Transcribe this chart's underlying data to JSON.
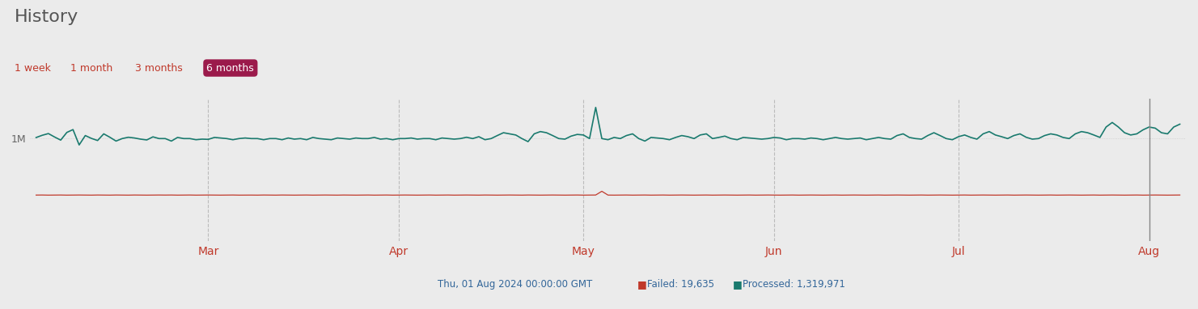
{
  "title": "History",
  "time_buttons": [
    "1 week",
    "1 month",
    "3 months",
    "6 months"
  ],
  "active_button": "6 months",
  "active_button_color": "#9b1a4b",
  "background_color": "#ebebeb",
  "plot_bg_color": "#ebebeb",
  "processed_color": "#1a7a6e",
  "failed_color": "#c0392b",
  "grid_color": "#cccccc",
  "x_tick_labels": [
    "Mar",
    "Apr",
    "May",
    "Jun",
    "Jul",
    "Aug"
  ],
  "y_tick_label": "1M",
  "y_tick_value": 1000000,
  "failed_legend": "Failed: 19,635",
  "processed_legend": "Processed: 1,319,971",
  "tooltip_date": "Thu, 01 Aug 2024 00:00:00 GMT",
  "num_days": 184,
  "processed_data": [
    1020000,
    1060000,
    1090000,
    1030000,
    975000,
    1110000,
    1160000,
    890000,
    1055000,
    1005000,
    968000,
    1085000,
    1025000,
    958000,
    1002000,
    1025000,
    1012000,
    992000,
    978000,
    1032000,
    1002000,
    1002000,
    958000,
    1022000,
    1002000,
    1002000,
    982000,
    992000,
    988000,
    1022000,
    1012000,
    1002000,
    982000,
    1002000,
    1012000,
    1002000,
    1002000,
    982000,
    1002000,
    1002000,
    982000,
    1012000,
    992000,
    1002000,
    982000,
    1022000,
    1002000,
    992000,
    982000,
    1012000,
    1002000,
    992000,
    1012000,
    1002000,
    1002000,
    1022000,
    992000,
    1002000,
    982000,
    1002000,
    1002000,
    1012000,
    992000,
    1002000,
    1002000,
    982000,
    1012000,
    1002000,
    992000,
    1002000,
    1025000,
    1002000,
    1035000,
    982000,
    1002000,
    1055000,
    1105000,
    1085000,
    1065000,
    1002000,
    948000,
    1085000,
    1125000,
    1105000,
    1055000,
    1002000,
    992000,
    1045000,
    1075000,
    1065000,
    1002000,
    1550000,
    1002000,
    982000,
    1022000,
    1002000,
    1055000,
    1085000,
    1002000,
    958000,
    1022000,
    1012000,
    1002000,
    982000,
    1022000,
    1055000,
    1035000,
    1002000,
    1065000,
    1085000,
    1002000,
    1022000,
    1045000,
    1002000,
    982000,
    1022000,
    1012000,
    1002000,
    992000,
    1002000,
    1022000,
    1012000,
    982000,
    1002000,
    1002000,
    992000,
    1012000,
    1002000,
    982000,
    1002000,
    1022000,
    1002000,
    992000,
    1002000,
    1012000,
    982000,
    1002000,
    1022000,
    1002000,
    992000,
    1055000,
    1085000,
    1022000,
    1002000,
    992000,
    1055000,
    1105000,
    1055000,
    1002000,
    982000,
    1035000,
    1065000,
    1022000,
    992000,
    1085000,
    1125000,
    1065000,
    1035000,
    1002000,
    1055000,
    1085000,
    1025000,
    992000,
    1002000,
    1055000,
    1085000,
    1065000,
    1022000,
    1002000,
    1085000,
    1125000,
    1105000,
    1065000,
    1022000,
    1205000,
    1285000,
    1205000,
    1105000,
    1065000,
    1085000,
    1155000,
    1205000,
    1185000,
    1105000,
    1085000,
    1205000,
    1255000
  ],
  "failed_data": [
    8000,
    9000,
    7000,
    8000,
    9000,
    7000,
    8000,
    9000,
    8000,
    7000,
    9000,
    8000,
    7000,
    9000,
    8000,
    7000,
    9000,
    8000,
    7000,
    8000,
    9000,
    8000,
    9000,
    7000,
    8000,
    9000,
    7000,
    8000,
    9000,
    8000,
    7000,
    8000,
    9000,
    7000,
    8000,
    8000,
    7000,
    9000,
    8000,
    7000,
    9000,
    8000,
    7000,
    8000,
    9000,
    7000,
    8000,
    9000,
    8000,
    7000,
    9000,
    8000,
    7000,
    8000,
    9000,
    7000,
    8000,
    9000,
    7000,
    8000,
    9000,
    8000,
    7000,
    8000,
    9000,
    7000,
    8000,
    9000,
    7000,
    8000,
    9000,
    8000,
    7000,
    9000,
    8000,
    7000,
    8000,
    9000,
    8000,
    7000,
    9000,
    8000,
    7000,
    8000,
    9000,
    8000,
    7000,
    8000,
    9000,
    7000,
    8000,
    9000,
    75000,
    8000,
    7000,
    8000,
    9000,
    7000,
    8000,
    9000,
    7000,
    8000,
    9000,
    7000,
    8000,
    9000,
    8000,
    7000,
    8000,
    9000,
    7000,
    8000,
    9000,
    8000,
    7000,
    8000,
    9000,
    7000,
    8000,
    9000,
    8000,
    7000,
    8000,
    9000,
    7000,
    8000,
    9000,
    8000,
    7000,
    8000,
    9000,
    7000,
    8000,
    9000,
    8000,
    7000,
    8000,
    9000,
    7000,
    8000,
    9000,
    8000,
    7000,
    8000,
    9000,
    7000,
    8000,
    9000,
    8000,
    7000,
    8000,
    9000,
    7000,
    8000,
    9000,
    8000,
    7000,
    8000,
    9000,
    7000,
    8000,
    9000,
    8000,
    7000,
    8000,
    9000,
    7000,
    8000,
    9000,
    8000,
    7000,
    8000,
    9000,
    7000,
    8000,
    9000,
    8000,
    7000,
    8000,
    9000,
    7000,
    8000,
    9000,
    8000,
    7000,
    8000,
    9000
  ]
}
